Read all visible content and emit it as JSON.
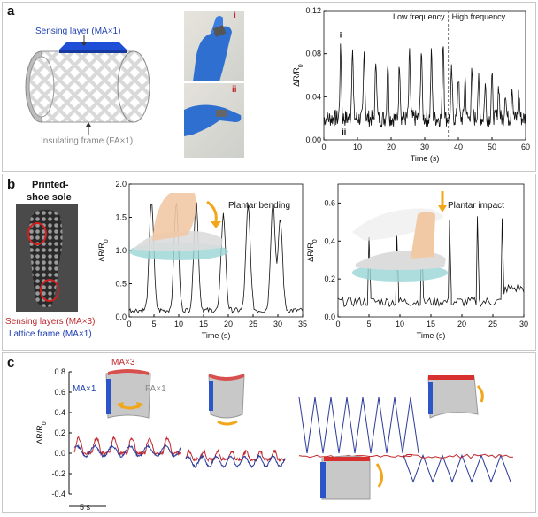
{
  "panel_a": {
    "label": "a",
    "sensing_layer": "Sensing layer (MA×1)",
    "insulating_frame": "Insulating frame (FA×1)",
    "photo_labels": [
      "i",
      "ii"
    ],
    "chart_annotations": [
      "i",
      "ii"
    ],
    "low_freq": "Low frequency",
    "high_freq": "High frequency"
  },
  "panel_b": {
    "label": "b",
    "shoe_title_1": "Printed-",
    "shoe_title_2": "shoe sole",
    "sensing_layers": "Sensing layers (MA×3)",
    "lattice_frame": "Lattice frame (MA×1)",
    "bending": "Plantar bending",
    "impact": "Plantar impact"
  },
  "panel_c": {
    "label": "c",
    "ma3": "MA×3",
    "ma1": "MA×1",
    "fa1": "FA×1",
    "scale": "5 s"
  },
  "colors": {
    "red": "#c0282d",
    "blue": "#2b3a9a",
    "gray": "#8c8c8c",
    "orange": "#f2a71b",
    "lattice": "#9ad4d6"
  },
  "chart_data": [
    {
      "type": "line",
      "id": "a",
      "xlabel": "Time (s)",
      "ylabel": "ΔR/R0",
      "xlim": [
        0,
        60
      ],
      "ylim": [
        0,
        0.12
      ],
      "xticks": [
        0,
        10,
        20,
        30,
        40,
        50,
        60
      ],
      "yticks": [
        0.0,
        0.04,
        0.08,
        0.12
      ],
      "divider_x": 37,
      "peaks_low": [
        [
          5,
          0.083
        ],
        [
          8.5,
          0.087
        ],
        [
          12,
          0.081
        ],
        [
          15.5,
          0.076
        ],
        [
          19,
          0.074
        ],
        [
          22.5,
          0.072
        ],
        [
          25.5,
          0.079
        ],
        [
          29,
          0.084
        ],
        [
          32,
          0.08
        ],
        [
          35.5,
          0.093
        ]
      ],
      "peaks_high": [
        [
          38,
          0.064
        ],
        [
          40,
          0.06
        ],
        [
          42,
          0.058
        ],
        [
          44,
          0.061
        ],
        [
          46,
          0.055
        ],
        [
          48,
          0.051
        ],
        [
          50,
          0.058
        ],
        [
          52,
          0.051
        ],
        [
          54,
          0.046
        ],
        [
          56,
          0.051
        ],
        [
          58,
          0.044
        ]
      ],
      "baseline": 0.02
    },
    {
      "type": "line",
      "id": "b1",
      "xlabel": "Time (s)",
      "ylabel": "ΔR/R0",
      "xlim": [
        0,
        35
      ],
      "ylim": [
        0,
        2.0
      ],
      "xticks": [
        0,
        5,
        10,
        15,
        20,
        25,
        30,
        35
      ],
      "yticks": [
        0.0,
        0.5,
        1.0,
        1.5,
        2.0
      ],
      "peaks": [
        [
          4.5,
          1.75
        ],
        [
          9.5,
          1.72
        ],
        [
          13.5,
          1.75
        ],
        [
          19,
          1.55
        ],
        [
          24,
          1.67
        ],
        [
          29,
          1.75
        ],
        [
          30.5,
          1.45
        ]
      ],
      "baseline": 0.1
    },
    {
      "type": "line",
      "id": "b2",
      "xlabel": "Time (s)",
      "ylabel": "ΔR/R0",
      "xlim": [
        0,
        30
      ],
      "ylim": [
        0,
        0.7
      ],
      "xticks": [
        0,
        5,
        10,
        15,
        20,
        25,
        30
      ],
      "yticks": [
        0.0,
        0.2,
        0.4,
        0.6
      ],
      "peaks": [
        [
          5,
          0.42
        ],
        [
          9.5,
          0.43
        ],
        [
          13.5,
          0.44
        ],
        [
          18,
          0.51
        ],
        [
          22.5,
          0.53
        ],
        [
          26.5,
          0.52
        ]
      ],
      "baseline": 0.02
    },
    {
      "type": "line",
      "id": "c",
      "ylabel": "ΔR/R0",
      "ylim": [
        -0.4,
        0.8
      ],
      "yticks": [
        -0.4,
        -0.2,
        0.0,
        0.2,
        0.4,
        0.6,
        0.8
      ],
      "series": [
        {
          "color": "#c0282d",
          "segments": [
            "bend1",
            "bend2",
            "bend3",
            "bend4"
          ]
        },
        {
          "color": "#2b3a9a",
          "segments": [
            "bend1",
            "bend2",
            "bend3",
            "bend4"
          ]
        }
      ]
    }
  ]
}
